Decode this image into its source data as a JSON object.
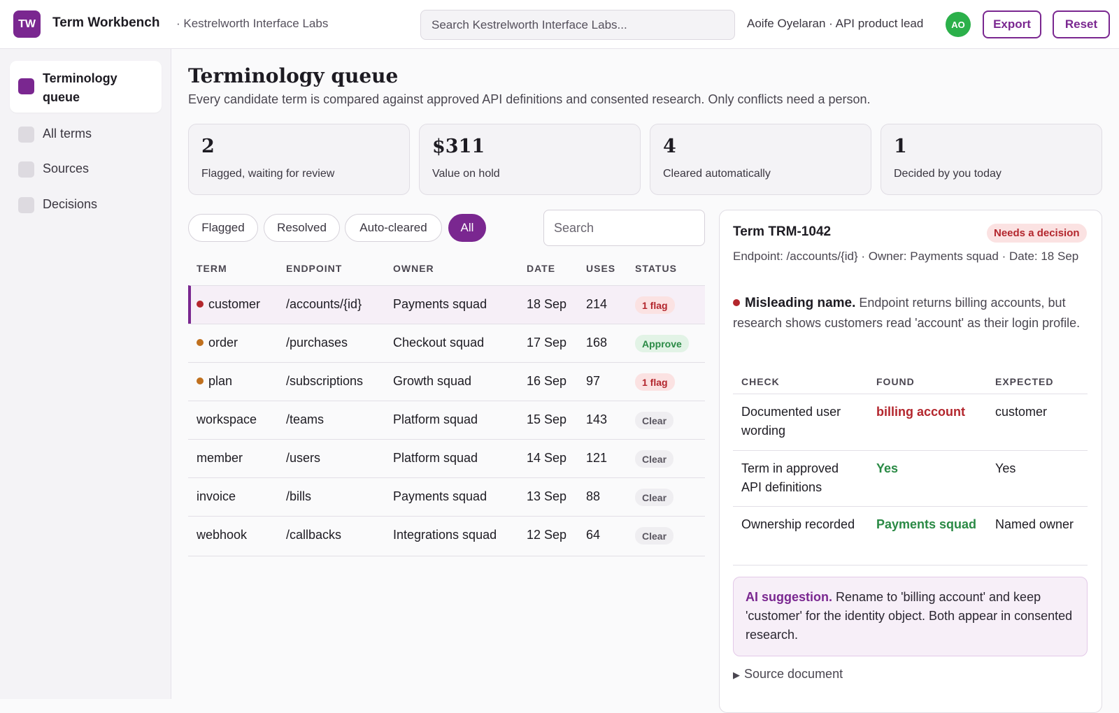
{
  "app": {
    "logo": "TW",
    "title": "Term Workbench",
    "org": "· Kestrelworth Interface Labs",
    "search_placeholder": "Search Kestrelworth Interface Labs...",
    "user": "Aoife Oyelaran · API product lead",
    "avatar": "AO",
    "export_label": "Export",
    "reset_label": "Reset"
  },
  "sidebar": {
    "items": [
      {
        "label": "Terminology queue",
        "active": true
      },
      {
        "label": "All terms",
        "active": false
      },
      {
        "label": "Sources",
        "active": false
      },
      {
        "label": "Decisions",
        "active": false
      }
    ]
  },
  "main": {
    "title": "Terminology queue",
    "subtitle": "Every candidate term is compared against approved API definitions and consented research. Only conflicts need a person.",
    "stats": [
      {
        "value": "2",
        "label": "Flagged, waiting for review"
      },
      {
        "value": "$311",
        "label": "Value on hold"
      },
      {
        "value": "4",
        "label": "Cleared automatically"
      },
      {
        "value": "1",
        "label": "Decided by you today"
      }
    ],
    "filters": [
      "Flagged",
      "Resolved",
      "Auto-cleared",
      "All"
    ],
    "active_filter": "All",
    "search_placeholder": "Search"
  },
  "table": {
    "headers": [
      "TERM",
      "ENDPOINT",
      "OWNER",
      "DATE",
      "USES",
      "STATUS"
    ],
    "rows": [
      {
        "term": "customer",
        "endpoint": "/accounts/{id}",
        "owner": "Payments squad",
        "date": "18 Sep",
        "uses": "214",
        "status": "1 flag",
        "dot": "#b3262d",
        "selected": true
      },
      {
        "term": "order",
        "endpoint": "/purchases",
        "owner": "Checkout squad",
        "date": "17 Sep",
        "uses": "168",
        "status": "Approve",
        "dot": "#c0701e",
        "selected": false
      },
      {
        "term": "plan",
        "endpoint": "/subscriptions",
        "owner": "Growth squad",
        "date": "16 Sep",
        "uses": "97",
        "status": "1 flag",
        "dot": "#c0701e",
        "selected": false
      },
      {
        "term": "workspace",
        "endpoint": "/teams",
        "owner": "Platform squad",
        "date": "15 Sep",
        "uses": "143",
        "status": "Clear",
        "dot": "",
        "selected": false
      },
      {
        "term": "member",
        "endpoint": "/users",
        "owner": "Platform squad",
        "date": "14 Sep",
        "uses": "121",
        "status": "Clear",
        "dot": "",
        "selected": false
      },
      {
        "term": "invoice",
        "endpoint": "/bills",
        "owner": "Payments squad",
        "date": "13 Sep",
        "uses": "88",
        "status": "Clear",
        "dot": "",
        "selected": false
      },
      {
        "term": "webhook",
        "endpoint": "/callbacks",
        "owner": "Integrations squad",
        "date": "12 Sep",
        "uses": "64",
        "status": "Clear",
        "dot": "",
        "selected": false
      }
    ]
  },
  "detail": {
    "title": "Term TRM-1042",
    "badge": "Needs a decision",
    "meta": "Endpoint: /accounts/{id} · Owner: Payments squad · Date: 18 Sep",
    "issue_title": "Misleading name.",
    "issue_text": "Endpoint returns billing accounts, but research shows customers read 'account' as their login profile.",
    "check_headers": [
      "CHECK",
      "FOUND",
      "EXPECTED"
    ],
    "checks": [
      {
        "check": "Documented user wording",
        "found": "billing account",
        "expected": "customer",
        "found_color": "#b3262d"
      },
      {
        "check": "Term in approved API definitions",
        "found": "Yes",
        "expected": "Yes",
        "found_color": "#2a8a45"
      },
      {
        "check": "Ownership recorded",
        "found": "Payments squad",
        "expected": "Named owner",
        "found_color": "#2a8a45"
      }
    ],
    "ai_title": "AI suggestion.",
    "ai_text": "Rename to 'billing account' and keep 'customer' for the identity object. Both appear in consented research.",
    "source_label": "Source document"
  },
  "colors": {
    "accent": "#7a2790",
    "flag_bg": "#fbe2e2",
    "flag_fg": "#b3262d",
    "approve_bg": "#e2f3e6",
    "approve_fg": "#2a8a45",
    "clear_bg": "#efeef1",
    "clear_fg": "#5a5660"
  }
}
